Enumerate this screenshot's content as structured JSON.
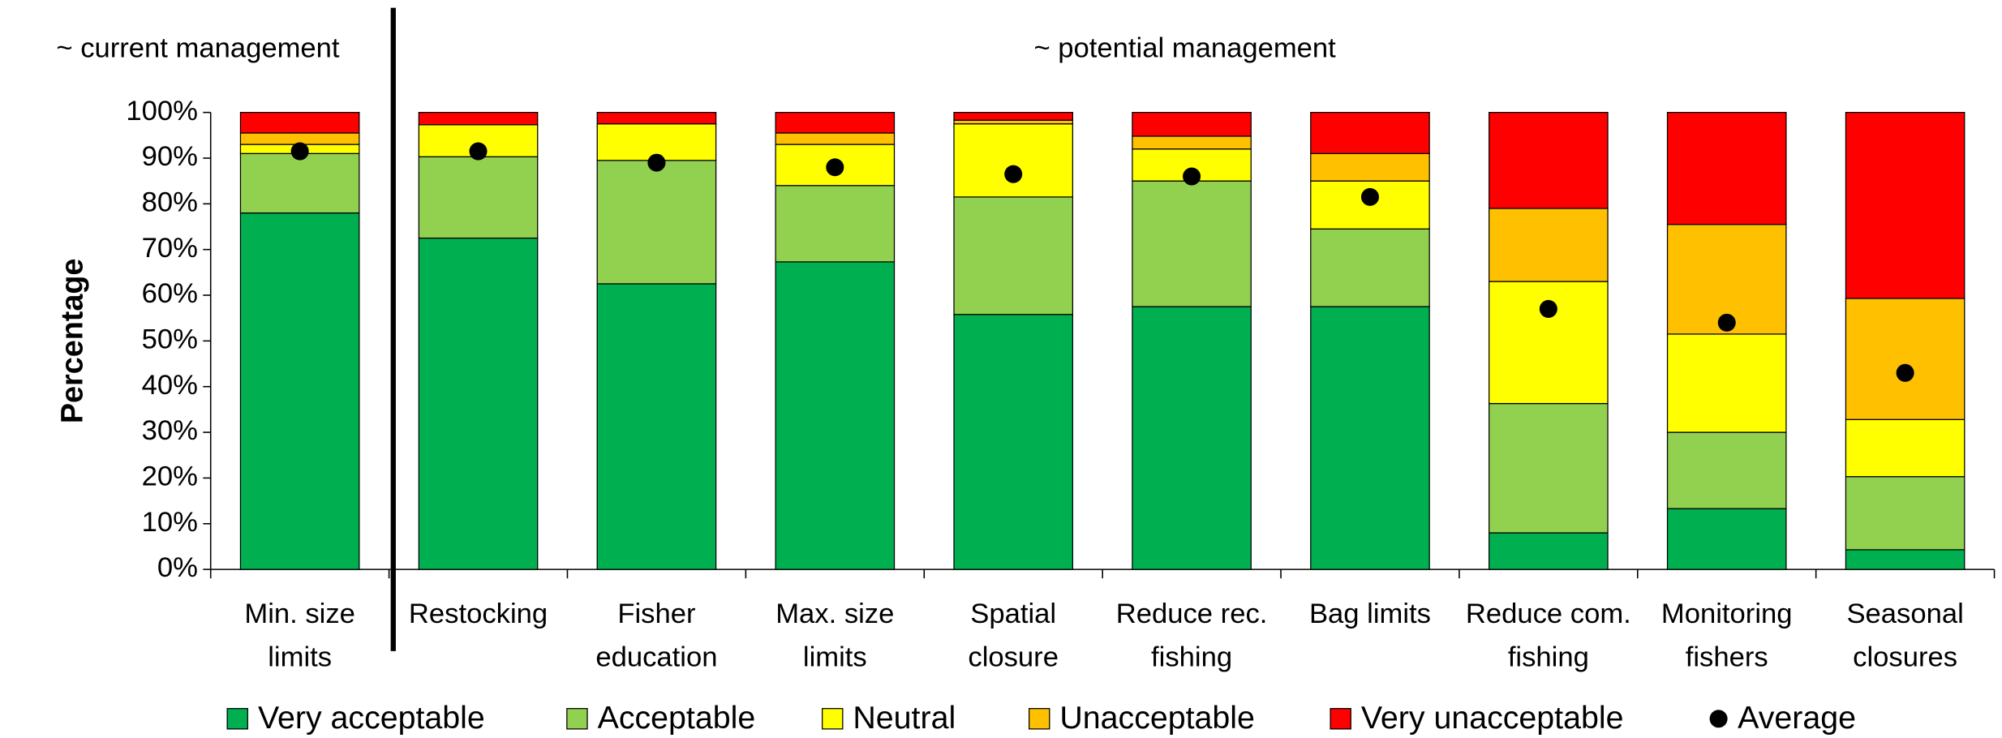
{
  "chart_data": {
    "type": "stacked_bar",
    "ylabel": "Percentage",
    "annotations": [
      "~ current management",
      "~ potential management"
    ],
    "categories": [
      "Min. size limits",
      "Restocking",
      "Fisher education",
      "Max. size limits",
      "Spatial closure",
      "Reduce rec. fishing",
      "Bag limits",
      "Reduce com. fishing",
      "Monitoring fishers",
      "Seasonal closures"
    ],
    "series": [
      {
        "name": "Very acceptable",
        "color": "#00b050",
        "values": [
          78,
          72.5,
          62.5,
          67.3,
          55.8,
          57.5,
          57.5,
          8,
          13.3,
          4.3
        ]
      },
      {
        "name": "Acceptable",
        "color": "#92d050",
        "values": [
          13,
          17.8,
          27,
          16.7,
          25.7,
          27.5,
          17,
          28.3,
          16.7,
          16
        ]
      },
      {
        "name": "Neutral",
        "color": "#ffff00",
        "values": [
          2,
          7,
          8,
          9,
          16,
          7,
          10.5,
          26.7,
          21.5,
          12.5
        ]
      },
      {
        "name": "Unacceptable",
        "color": "#ffc000",
        "values": [
          2.5,
          0,
          0,
          2.5,
          0.8,
          2.8,
          6,
          16,
          24,
          26.5
        ]
      },
      {
        "name": "Very unacceptable",
        "color": "#ff0000",
        "values": [
          4.5,
          2.7,
          2.5,
          4.5,
          1.7,
          5.2,
          9,
          21,
          24.5,
          40.7
        ]
      }
    ],
    "average": {
      "name": "Average",
      "color": "#000000",
      "values": [
        91.5,
        91.5,
        89,
        88,
        86.5,
        86,
        81.5,
        57,
        54,
        43
      ]
    },
    "ylim": [
      0,
      100
    ],
    "yticks": [
      {
        "value": 0,
        "label": "0%"
      },
      {
        "value": 10,
        "label": "10%"
      },
      {
        "value": 20,
        "label": "20%"
      },
      {
        "value": 30,
        "label": "30%"
      },
      {
        "value": 40,
        "label": "40%"
      },
      {
        "value": 50,
        "label": "50%"
      },
      {
        "value": 60,
        "label": "60%"
      },
      {
        "value": 70,
        "label": "70%"
      },
      {
        "value": 80,
        "label": "80%"
      },
      {
        "value": 90,
        "label": "90%"
      },
      {
        "value": 100,
        "label": "100%"
      }
    ]
  }
}
